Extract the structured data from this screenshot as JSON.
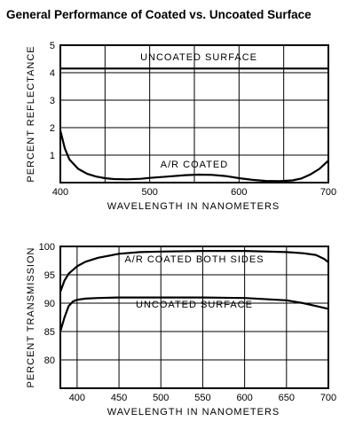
{
  "figure_title": "General Performance of Coated vs. Uncoated Surface",
  "chart_data": [
    {
      "type": "line",
      "title": "",
      "xlabel": "WAVELENGTH IN NANOMETERS",
      "ylabel": "PERCENT REFLECTANCE",
      "xlim": [
        400,
        700
      ],
      "ylim": [
        0,
        5
      ],
      "xticks": [
        "400",
        "500",
        "600",
        "700"
      ],
      "yticks": [
        "1",
        "2",
        "3",
        "4",
        "5"
      ],
      "grid": true,
      "series": [
        {
          "name": "UNCOATED SURFACE",
          "x": [
            400,
            700
          ],
          "y": [
            4.15,
            4.15
          ]
        },
        {
          "name": "A/R COATED",
          "x": [
            400,
            405,
            410,
            420,
            430,
            440,
            450,
            460,
            475,
            490,
            500,
            520,
            540,
            555,
            570,
            585,
            600,
            615,
            630,
            645,
            660,
            670,
            680,
            690,
            700
          ],
          "y": [
            1.9,
            1.25,
            0.85,
            0.5,
            0.32,
            0.22,
            0.16,
            0.13,
            0.12,
            0.14,
            0.17,
            0.22,
            0.27,
            0.29,
            0.28,
            0.24,
            0.16,
            0.1,
            0.06,
            0.05,
            0.08,
            0.15,
            0.3,
            0.5,
            0.8
          ]
        }
      ],
      "annotations": [
        "UNCOATED SURFACE",
        "A/R COATED"
      ]
    },
    {
      "type": "line",
      "title": "",
      "xlabel": "WAVELENGTH IN NANOMETERS",
      "ylabel": "PERCENT TRANSMISSION",
      "xlim": [
        380,
        700
      ],
      "ylim": [
        75,
        100
      ],
      "xticks": [
        "400",
        "450",
        "500",
        "550",
        "600",
        "650",
        "700"
      ],
      "yticks": [
        "80",
        "85",
        "90",
        "95",
        "100"
      ],
      "grid": true,
      "series": [
        {
          "name": "A/R COATED BOTH SIDES",
          "x": [
            380,
            385,
            390,
            400,
            410,
            425,
            450,
            475,
            500,
            550,
            600,
            650,
            670,
            685,
            695,
            700
          ],
          "y": [
            92,
            94,
            95.2,
            96.5,
            97.3,
            98,
            98.7,
            99,
            99.1,
            99.2,
            99.2,
            99,
            98.8,
            98.5,
            97.8,
            97.2
          ]
        },
        {
          "name": "UNCOATED SURFACE",
          "x": [
            380,
            385,
            390,
            395,
            400,
            410,
            425,
            450,
            500,
            550,
            600,
            650,
            670,
            685,
            700
          ],
          "y": [
            85,
            87.5,
            89.5,
            90.3,
            90.6,
            90.8,
            90.9,
            91,
            91,
            91,
            90.9,
            90.5,
            90,
            89.5,
            89
          ]
        }
      ],
      "annotations": [
        "A/R COATED BOTH SIDES",
        "UNCOATED SURFACE"
      ]
    }
  ]
}
